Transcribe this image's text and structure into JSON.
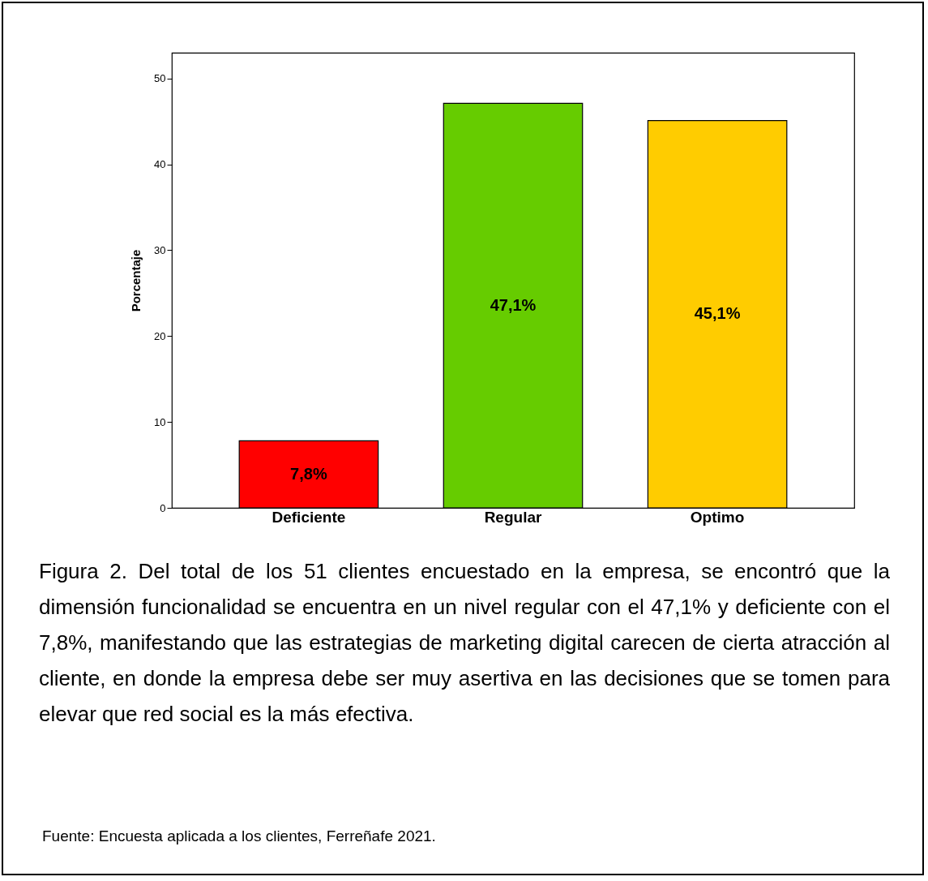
{
  "chart_data": {
    "type": "bar",
    "ylabel": "Porcentaje",
    "categories": [
      "Deficiente",
      "Regular",
      "Optimo"
    ],
    "values": [
      7.8,
      47.1,
      45.1
    ],
    "colors": [
      "#ff0000",
      "#66cc00",
      "#ffcc00"
    ],
    "value_labels": [
      "7,8%",
      "47,1%",
      "45,1%"
    ],
    "ylim": [
      0,
      53
    ],
    "yticks": [
      0,
      10,
      20,
      30,
      40,
      50
    ],
    "grid": false,
    "legend": false,
    "annotations": [
      "Figura 2. Del total de los 51 clientes encuestado en la empresa, se encontró que la dimensión funcionalidad se encuentra en un nivel regular con el 47,1% y deficiente con el 7,8%, manifestando que las estrategias de marketing digital carecen de cierta atracción al cliente, en donde la empresa debe ser muy asertiva en las decisiones que se tomen para elevar que red social es la más efectiva.",
      "Fuente: Encuesta aplicada a los clientes, Ferreñafe 2021."
    ]
  }
}
